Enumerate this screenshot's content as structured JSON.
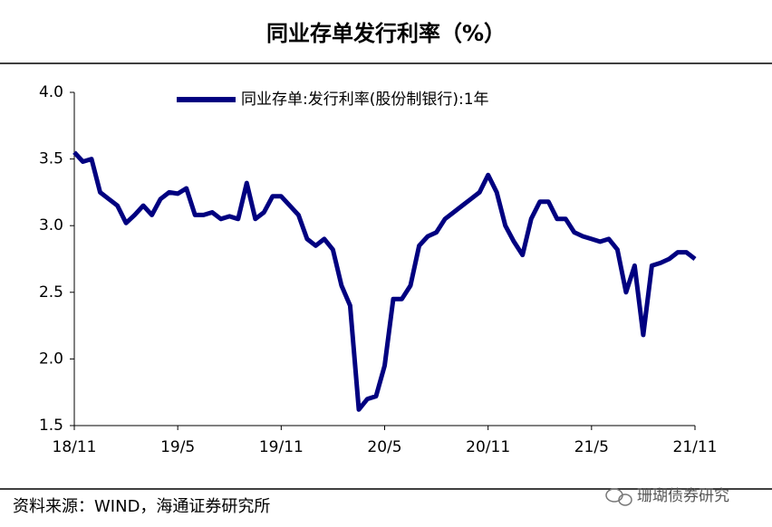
{
  "chart_data": {
    "type": "line",
    "title": "同业存单发行利率（%）",
    "source": "资料来源：WIND，海通证券研究所",
    "watermark": "珊瑚债券研究",
    "legend": "top",
    "categories": [
      "18/11",
      null,
      null,
      null,
      null,
      null,
      null,
      null,
      null,
      null,
      null,
      null,
      "19/5",
      null,
      null,
      null,
      null,
      null,
      null,
      null,
      null,
      null,
      null,
      null,
      "19/11",
      null,
      null,
      null,
      null,
      null,
      null,
      null,
      null,
      null,
      null,
      null,
      "20/5",
      null,
      null,
      null,
      null,
      null,
      null,
      null,
      null,
      null,
      null,
      null,
      "20/11",
      null,
      null,
      null,
      null,
      null,
      null,
      null,
      null,
      null,
      null,
      null,
      "21/5",
      null,
      null,
      null,
      null,
      null,
      null,
      null,
      null,
      null,
      null,
      null,
      "21/11"
    ],
    "series": [
      {
        "name": "同业存单:发行利率(股份制银行):1年",
        "color": "#000080",
        "values": [
          3.55,
          3.48,
          3.5,
          3.25,
          3.2,
          3.15,
          3.02,
          3.08,
          3.15,
          3.08,
          3.2,
          3.25,
          3.24,
          3.28,
          3.08,
          3.08,
          3.1,
          3.05,
          3.07,
          3.05,
          3.32,
          3.05,
          3.1,
          3.22,
          3.22,
          3.15,
          3.08,
          2.9,
          2.85,
          2.9,
          2.82,
          2.55,
          2.4,
          1.62,
          1.7,
          1.72,
          1.95,
          2.45,
          2.45,
          2.55,
          2.85,
          2.92,
          2.95,
          3.05,
          3.1,
          3.15,
          3.2,
          3.25,
          3.38,
          3.25,
          3.0,
          2.88,
          2.78,
          3.05,
          3.18,
          3.18,
          3.05,
          3.05,
          2.95,
          2.92,
          2.9,
          2.88,
          2.9,
          2.82,
          2.5,
          2.7,
          2.18,
          2.7,
          2.72,
          2.75,
          2.8,
          2.8,
          2.75
        ]
      }
    ],
    "ylim": [
      1.5,
      4
    ],
    "yticks": [
      1.5,
      {
        "value": 2,
        "label": "2.0"
      },
      2.5,
      {
        "value": 3,
        "label": "3.0"
      },
      3.5,
      {
        "value": 4,
        "label": "4.0"
      }
    ],
    "grid": false
  }
}
